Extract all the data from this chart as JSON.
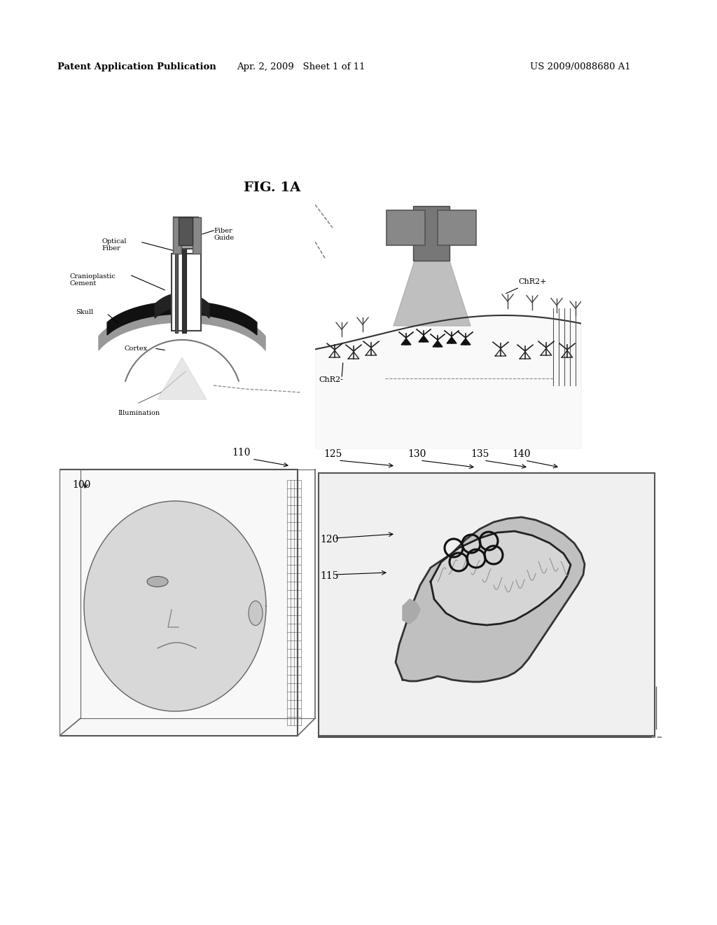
{
  "page_bg": "#ffffff",
  "header_left": "Patent Application Publication",
  "header_middle": "Apr. 2, 2009   Sheet 1 of 11",
  "header_right": "US 2009/0088680 A1",
  "fig_title": "FIG. 1A",
  "top_diagram_labels": {
    "optical_fiber": "Optical\nFiber",
    "fiber_guide": "Fiber\nGuide",
    "cranioplastic": "Cranioplastic\nCement",
    "skull": "Skull",
    "cortex": "Cortex",
    "illumination": "Illumination",
    "chr2_minus": "ChR2-",
    "chr2_plus": "ChR2+"
  },
  "bottom_labels": {
    "100": "100",
    "110": "110",
    "115": "115",
    "120": "120",
    "125": "125",
    "130": "130",
    "135": "135",
    "140": "140"
  }
}
